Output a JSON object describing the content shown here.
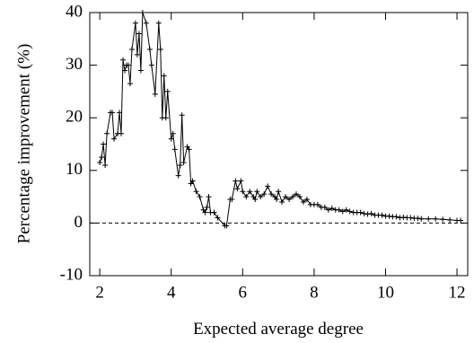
{
  "chart_data": {
    "type": "line",
    "xlabel": "Expected average degree",
    "ylabel": "Percentage improvement (%)",
    "x": [
      2.0,
      2.05,
      2.1,
      2.15,
      2.2,
      2.3,
      2.35,
      2.4,
      2.5,
      2.55,
      2.6,
      2.65,
      2.7,
      2.75,
      2.8,
      2.85,
      2.9,
      3.0,
      3.05,
      3.1,
      3.15,
      3.2,
      3.3,
      3.4,
      3.45,
      3.55,
      3.65,
      3.7,
      3.75,
      3.8,
      3.85,
      3.9,
      4.0,
      4.05,
      4.1,
      4.2,
      4.25,
      4.3,
      4.35,
      4.45,
      4.5,
      4.55,
      4.6,
      4.7,
      4.8,
      4.9,
      4.95,
      5.0,
      5.05,
      5.1,
      5.2,
      5.3,
      5.5,
      5.55,
      5.65,
      5.7,
      5.8,
      5.85,
      5.95,
      6.0,
      6.1,
      6.2,
      6.3,
      6.35,
      6.4,
      6.5,
      6.6,
      6.7,
      6.8,
      6.9,
      6.95,
      7.0,
      7.1,
      7.2,
      7.3,
      7.4,
      7.5,
      7.6,
      7.7,
      7.8,
      7.9,
      8.0,
      8.1,
      8.2,
      8.3,
      8.4,
      8.5,
      8.6,
      8.7,
      8.8,
      8.9,
      9.0,
      9.1,
      9.2,
      9.3,
      9.4,
      9.5,
      9.6,
      9.7,
      9.8,
      9.9,
      10.0,
      10.1,
      10.2,
      10.3,
      10.4,
      10.5,
      10.6,
      10.7,
      10.8,
      10.9,
      11.0,
      11.2,
      11.4,
      11.6,
      11.8,
      12.0,
      12.1
    ],
    "series": [
      {
        "color": "#000000",
        "values": [
          11.5,
          12.5,
          15,
          11,
          17,
          21,
          21,
          16,
          17,
          21,
          17,
          31,
          29,
          30,
          30,
          26.5,
          33,
          38,
          32,
          36,
          29,
          40,
          38,
          33,
          30,
          24.5,
          38,
          33,
          20,
          28,
          20,
          25,
          16,
          17,
          14,
          9,
          11,
          20.5,
          11.5,
          14.5,
          14,
          7.5,
          8,
          6,
          5,
          2.5,
          2,
          3,
          5,
          2,
          2,
          1,
          -0.5,
          -0.5,
          4.5,
          4.5,
          8,
          6.5,
          8,
          6,
          5,
          6,
          5,
          4.5,
          6,
          5,
          5.5,
          7,
          5.5,
          5,
          4.5,
          6,
          4,
          5,
          4.5,
          5,
          5.5,
          5,
          4,
          4.5,
          3.5,
          3.5,
          3.5,
          3,
          3,
          2.5,
          2.8,
          2.5,
          2.5,
          2.2,
          2.5,
          2.2,
          2,
          2,
          2,
          1.8,
          1.7,
          1.8,
          1.5,
          1.5,
          1.5,
          1.3,
          1.3,
          1.2,
          1.2,
          1,
          1.1,
          1,
          1,
          0.9,
          0.9,
          0.8,
          0.8,
          0.8,
          0.7,
          0.6,
          0.5,
          0.5
        ]
      }
    ],
    "reference_line": 0,
    "xlim": [
      1.72,
      12.3
    ],
    "ylim": [
      -10,
      40
    ],
    "xticks": [
      2,
      4,
      6,
      8,
      10,
      12
    ],
    "yticks": [
      -10,
      0,
      10,
      20,
      30,
      40
    ]
  }
}
